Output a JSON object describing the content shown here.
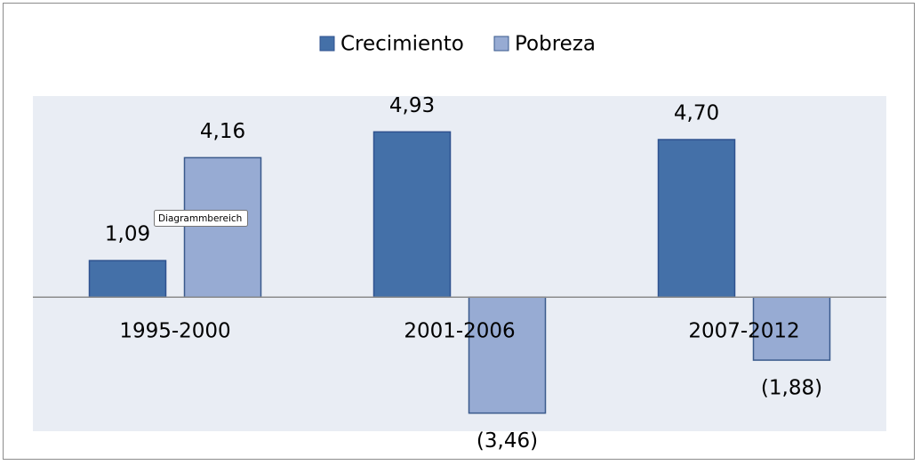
{
  "chart_data": {
    "type": "bar",
    "categories": [
      "1995-2000",
      "2001-2006",
      "2007-2012"
    ],
    "series": [
      {
        "name": "Crecimiento",
        "color": "#4470a8",
        "values": [
          1.09,
          4.93,
          4.7
        ],
        "value_labels": [
          "1,09",
          "4,93",
          "4,70"
        ]
      },
      {
        "name": "Pobreza",
        "color": "#97abd3",
        "values": [
          4.16,
          -3.46,
          -1.88
        ],
        "value_labels": [
          "4,16",
          "(3,46)",
          "(1,88)"
        ]
      }
    ],
    "ylim": [
      -4,
      6
    ],
    "legend": "top",
    "tooltip": "Diagrammbereich"
  }
}
